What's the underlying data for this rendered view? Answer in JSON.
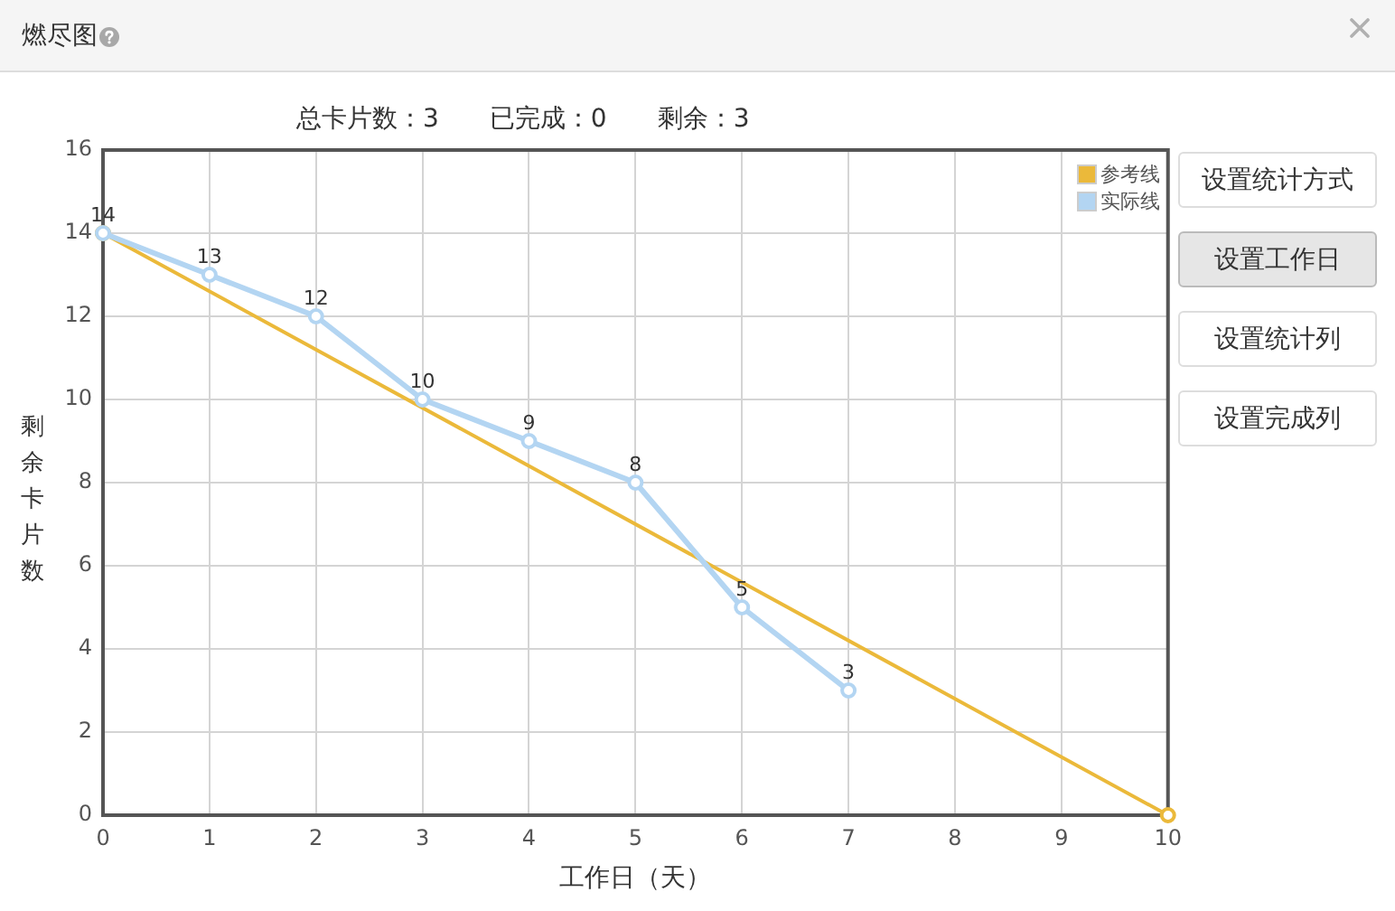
{
  "chart_data": {
    "type": "line",
    "title": "燃尽图",
    "subtitle": "总卡片数：3　　已完成：0　　剩余：3",
    "xlabel": "工作日（天）",
    "ylabel": "剩余卡片数",
    "series": [
      {
        "name": "参考线",
        "color": "#ebb93a",
        "x": [
          0,
          10
        ],
        "values": [
          14,
          0
        ]
      },
      {
        "name": "实际线",
        "color": "#b3d5f2",
        "x": [
          0,
          1,
          2,
          3,
          4,
          5,
          6,
          7
        ],
        "values": [
          14,
          13,
          12,
          10,
          9,
          8,
          5,
          3
        ],
        "value_labels": [
          "14",
          "13",
          "12",
          "10",
          "9",
          "8",
          "5",
          "3"
        ]
      }
    ],
    "xlim": [
      0,
      10
    ],
    "xticks": [
      0,
      1,
      2,
      3,
      4,
      5,
      6,
      7,
      8,
      9,
      10
    ],
    "ylim": [
      0,
      16
    ],
    "yticks": [
      0,
      2,
      4,
      6,
      8,
      10,
      12,
      14,
      16
    ],
    "grid": true,
    "legend": "top right",
    "marker": "circle",
    "line_style": "solid",
    "annotations": [
      "设置统计方式",
      "设置工作日",
      "设置统计列",
      "设置完成列"
    ]
  }
}
